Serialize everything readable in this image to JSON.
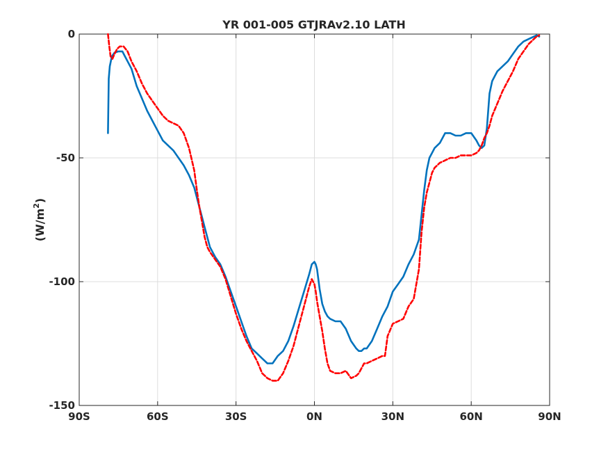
{
  "chart_data": {
    "type": "line",
    "title": "YR 001-005 GTJRAv2.10 LATH",
    "xlabel": "",
    "ylabel": "(W/m",
    "ylabel_sup": "2",
    "ylabel_close": ")",
    "xlim": [
      -90,
      90
    ],
    "ylim": [
      -150,
      0
    ],
    "grid": true,
    "x_ticks": [
      {
        "value": -90,
        "label": "90S"
      },
      {
        "value": -60,
        "label": "60S"
      },
      {
        "value": -30,
        "label": "30S"
      },
      {
        "value": 0,
        "label": "0N"
      },
      {
        "value": 30,
        "label": "30N"
      },
      {
        "value": 60,
        "label": "60N"
      },
      {
        "value": 90,
        "label": "90N"
      }
    ],
    "y_ticks": [
      {
        "value": 0,
        "label": "0"
      },
      {
        "value": -50,
        "label": "-50"
      },
      {
        "value": -100,
        "label": "-100"
      },
      {
        "value": -150,
        "label": "-150"
      }
    ],
    "series": [
      {
        "color": "#0072BD",
        "style": "solid",
        "x": [
          -79,
          -78.7,
          -78.3,
          -77.5,
          -76.5,
          -75,
          -73.5,
          -72.5,
          -71.5,
          -70,
          -68,
          -66,
          -64,
          -62,
          -60,
          -58,
          -56,
          -54,
          -52,
          -50,
          -48,
          -46,
          -45,
          -44,
          -43,
          -42,
          -41,
          -40,
          -38,
          -36,
          -34,
          -32,
          -30,
          -28,
          -26,
          -24,
          -22,
          -20,
          -18,
          -16,
          -14,
          -12,
          -10,
          -8,
          -6,
          -4,
          -2,
          -1,
          0,
          0.5,
          1,
          2,
          3,
          4,
          5,
          6,
          8,
          10,
          12,
          14,
          16,
          17,
          18,
          19,
          20,
          22,
          24,
          26,
          28,
          30,
          32,
          34,
          36,
          38,
          40,
          41,
          42,
          43,
          44,
          45,
          46,
          48,
          50,
          52,
          54,
          56,
          58,
          60,
          62,
          63,
          64,
          65,
          66,
          67,
          68,
          69,
          70,
          72,
          74,
          76,
          78,
          80,
          82,
          84,
          85,
          86
        ],
        "y": [
          -40,
          -18,
          -13,
          -9,
          -7.5,
          -7,
          -7,
          -9,
          -11,
          -14,
          -21,
          -26,
          -31,
          -35,
          -39,
          -43,
          -45,
          -47,
          -50,
          -53,
          -57,
          -62,
          -66,
          -70,
          -74,
          -78,
          -82,
          -86,
          -90,
          -93,
          -98,
          -104,
          -110,
          -116,
          -122,
          -127,
          -129,
          -131,
          -133,
          -133,
          -130,
          -128,
          -124,
          -118,
          -111,
          -104,
          -97,
          -93,
          -92,
          -93,
          -95,
          -103,
          -109,
          -112,
          -114,
          -115,
          -116,
          -116,
          -119,
          -124,
          -127,
          -128,
          -128,
          -127,
          -127,
          -124,
          -119,
          -114,
          -110,
          -104,
          -101,
          -98,
          -93,
          -89,
          -83,
          -73,
          -63,
          -55,
          -50,
          -48,
          -46,
          -44,
          -40,
          -40,
          -41,
          -41,
          -40,
          -40,
          -43,
          -45,
          -46,
          -45,
          -38,
          -24,
          -19,
          -17,
          -15,
          -13,
          -11,
          -8,
          -5,
          -3,
          -2,
          -1,
          -0.5,
          -1
        ]
      },
      {
        "color": "#FF0000",
        "style": "dashed",
        "x": [
          -79,
          -78.5,
          -78,
          -77.3,
          -76.5,
          -75.5,
          -74.5,
          -73,
          -71.5,
          -70,
          -68,
          -66,
          -64,
          -62,
          -60,
          -58,
          -56,
          -54,
          -52,
          -50,
          -48,
          -46,
          -45,
          -44,
          -43,
          -42,
          -41,
          -40,
          -38,
          -36,
          -34,
          -32,
          -30,
          -28,
          -26,
          -24,
          -22,
          -20,
          -18,
          -16,
          -14,
          -12,
          -10,
          -8,
          -6,
          -4,
          -2,
          -1,
          0,
          0.5,
          1,
          2,
          3,
          4,
          5,
          6,
          8,
          10,
          12,
          14,
          16,
          17,
          18,
          19,
          20,
          22,
          24,
          26,
          27,
          28,
          30,
          32,
          34,
          36,
          38,
          40,
          41,
          42,
          43,
          44,
          45,
          46,
          48,
          50,
          52,
          54,
          56,
          58,
          60,
          62,
          63,
          64,
          65,
          66,
          67,
          68,
          70,
          72,
          74,
          76,
          78,
          80,
          82,
          84,
          85,
          86
        ],
        "y": [
          0,
          -5,
          -9,
          -10,
          -8,
          -6,
          -5,
          -5,
          -7,
          -11,
          -15,
          -20,
          -24,
          -27,
          -30,
          -33,
          -35,
          -36,
          -37,
          -40,
          -46,
          -55,
          -63,
          -70,
          -76,
          -82,
          -86,
          -88,
          -91,
          -94,
          -99,
          -106,
          -113,
          -119,
          -124,
          -128,
          -132,
          -137,
          -139,
          -140,
          -140,
          -137,
          -132,
          -126,
          -118,
          -110,
          -102,
          -99,
          -101,
          -104,
          -108,
          -114,
          -120,
          -127,
          -133,
          -136,
          -137,
          -137,
          -136,
          -139,
          -138,
          -137,
          -135,
          -133,
          -133,
          -132,
          -131,
          -130,
          -130,
          -122,
          -117,
          -116,
          -115,
          -110,
          -107,
          -95,
          -80,
          -70,
          -64,
          -60,
          -56,
          -54,
          -52,
          -51,
          -50,
          -50,
          -49,
          -49,
          -49,
          -48,
          -47,
          -45,
          -42,
          -40,
          -37,
          -33,
          -28,
          -23,
          -19,
          -15,
          -10,
          -7,
          -4,
          -2,
          -1,
          -0.5
        ]
      }
    ]
  }
}
